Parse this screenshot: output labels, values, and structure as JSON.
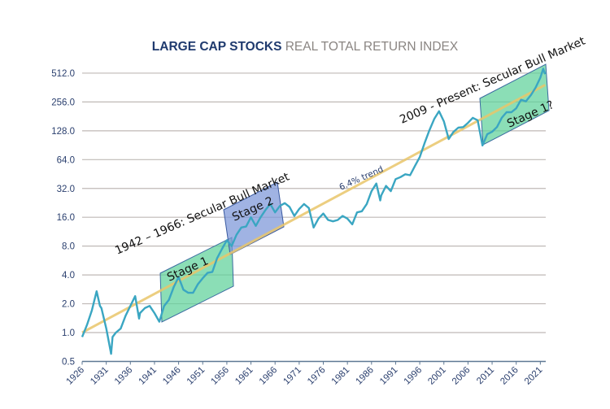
{
  "chart_data": {
    "type": "line",
    "title": "LARGE CAP STOCKS REAL TOTAL RETURN INDEX",
    "title_bold": "LARGE CAP STOCKS",
    "title_rest": "REAL TOTAL RETURN INDEX",
    "xlabel": "",
    "ylabel": "",
    "yscale": "log2",
    "ylim": [
      0.5,
      512
    ],
    "xlim": [
      1926,
      2022
    ],
    "yticks": [
      "512.0",
      "256.0",
      "128.0",
      "64.0",
      "32.0",
      "16.0",
      "8.0",
      "4.0",
      "2.0",
      "1.0",
      "0.5"
    ],
    "ytick_values": [
      512,
      256,
      128,
      64,
      32,
      16,
      8,
      4,
      2,
      1,
      0.5
    ],
    "xticks": [
      "1926",
      "1931",
      "1936",
      "1941",
      "1946",
      "1951",
      "1956",
      "1961",
      "1966",
      "1971",
      "1976",
      "1981",
      "1986",
      "1991",
      "1996",
      "2001",
      "2006",
      "2011",
      "2016",
      "2021"
    ],
    "grid": "horizontal",
    "series": [
      {
        "name": "Real total return index",
        "color": "#3aa6c2",
        "x": [
          1926,
          1927,
          1928,
          1929,
          1929.7,
          1930,
          1931,
          1932,
          1932.3,
          1933,
          1934,
          1935,
          1936,
          1937,
          1937.8,
          1938,
          1939,
          1940,
          1941,
          1942,
          1943,
          1944,
          1945,
          1946,
          1947,
          1948,
          1949,
          1950,
          1951,
          1952,
          1953,
          1954,
          1955,
          1956,
          1957,
          1958,
          1959,
          1960,
          1961,
          1962,
          1963,
          1964,
          1965,
          1966,
          1967,
          1968,
          1969,
          1970,
          1971,
          1972,
          1973,
          1974,
          1975,
          1976,
          1977,
          1978,
          1979,
          1980,
          1981,
          1982,
          1983,
          1984,
          1985,
          1986,
          1987,
          1987.8,
          1988,
          1989,
          1990,
          1991,
          1992,
          1993,
          1994,
          1995,
          1996,
          1997,
          1998,
          1999,
          2000,
          2001,
          2002,
          2003,
          2004,
          2005,
          2006,
          2007,
          2008,
          2009,
          2010,
          2011,
          2012,
          2013,
          2014,
          2015,
          2016,
          2017,
          2018,
          2019,
          2020,
          2021,
          2021.6,
          2022
        ],
        "values": [
          0.9,
          1.2,
          1.7,
          2.7,
          1.9,
          1.8,
          1.1,
          0.6,
          0.9,
          1.0,
          1.1,
          1.5,
          1.9,
          2.4,
          1.4,
          1.6,
          1.8,
          1.9,
          1.6,
          1.3,
          1.9,
          2.2,
          3.0,
          3.8,
          2.8,
          2.6,
          2.6,
          3.2,
          3.7,
          4.2,
          4.3,
          6.0,
          7.5,
          9.2,
          8.0,
          10.5,
          12.5,
          12.8,
          16.0,
          13.0,
          16.0,
          19.0,
          22.0,
          18.0,
          21.0,
          22.5,
          20.5,
          16.5,
          19.5,
          22.0,
          20.0,
          12.5,
          15.5,
          17.5,
          15.0,
          14.5,
          15.0,
          16.5,
          15.5,
          13.5,
          18.0,
          18.5,
          22.0,
          30.0,
          36.0,
          24.0,
          27.0,
          34.0,
          30.0,
          40.0,
          42.0,
          45.0,
          44.0,
          55.0,
          68.0,
          95.0,
          130.0,
          170.0,
          205.0,
          160.0,
          105.0,
          125.0,
          138.0,
          140.0,
          155.0,
          175.0,
          165.0,
          90.0,
          118.0,
          125.0,
          140.0,
          175.0,
          200.0,
          200.0,
          220.0,
          270.0,
          260.0,
          300.0,
          360.0,
          460.0,
          570.0,
          500.0
        ]
      },
      {
        "name": "6.4% trend",
        "color": "#e9c66a",
        "x": [
          1926,
          2022
        ],
        "values": [
          1.0,
          386.0
        ]
      }
    ],
    "annotations": [
      {
        "text": "1942 – 1966: Secular Bull Market",
        "type": "label"
      },
      {
        "text": "2009 -  Present: Secular Bull Market",
        "type": "label"
      },
      {
        "text": "6.4% trend",
        "type": "trend-label"
      },
      {
        "text": "Stage 1",
        "type": "box",
        "x_range": [
          1942,
          1957
        ],
        "color": "#5ed19a"
      },
      {
        "text": "Stage 2",
        "type": "box",
        "x_range": [
          1957,
          1968
        ],
        "color": "#7b96d8"
      },
      {
        "text": "Stage 1?",
        "type": "box",
        "x_range": [
          2008,
          2022
        ],
        "color": "#5ed19a"
      }
    ]
  },
  "colors": {
    "title_bold": "#1f3a6e",
    "title_rest": "#8a8582",
    "axis": "#5e7894",
    "grid": "#bfb9b6",
    "tick_text": "#2a3f6e"
  }
}
